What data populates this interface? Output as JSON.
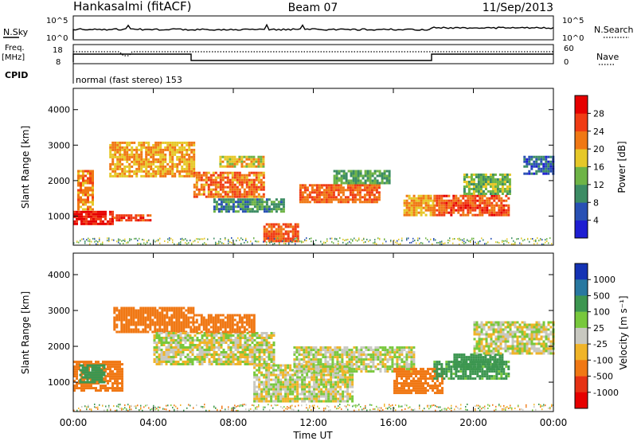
{
  "header": {
    "station": "Hankasalmi (fitACF)",
    "beam": "Beam 07",
    "date": "11/Sep/2013"
  },
  "noise_panel": {
    "left_label": "N.Sky",
    "right_label": "N.Search",
    "tick_top": "10^5",
    "tick_bottom": "10^0"
  },
  "freq_panel": {
    "left_label_line1": "Freq.",
    "left_label_line2": "[MHz]",
    "right_label": "Nave",
    "left_ticks": [
      "18",
      "8"
    ],
    "right_ticks": [
      "60",
      "0"
    ]
  },
  "cpid": {
    "label": "CPID",
    "value": "normal (fast stereo) 153"
  },
  "power_panel": {
    "ylabel": "Slant Range [km]",
    "yticks": [
      "1000",
      "2000",
      "3000",
      "4000"
    ],
    "colorbar_label": "Power [dB]",
    "colorbar_ticks": [
      "4",
      "8",
      "12",
      "16",
      "20",
      "24",
      "28"
    ],
    "colors": [
      "#1e1ed2",
      "#2850b4",
      "#3c8c64",
      "#6eb446",
      "#e6c828",
      "#f07814",
      "#f03c14",
      "#e60000"
    ]
  },
  "velocity_panel": {
    "ylabel": "Slant Range [km]",
    "yticks": [
      "1000",
      "2000",
      "3000",
      "4000"
    ],
    "colorbar_label": "Velocity [m s⁻¹]",
    "colorbar_ticks": [
      "1000",
      "500",
      "100",
      "25",
      "-25",
      "-100",
      "-500",
      "-1000"
    ],
    "colors": [
      "#1432b4",
      "#2878a0",
      "#3c9650",
      "#78c83c",
      "#c8c8c0",
      "#f0b428",
      "#f07814",
      "#e63214",
      "#e60000"
    ]
  },
  "xaxis": {
    "label": "Time UT",
    "ticks": [
      "00:00",
      "04:00",
      "08:00",
      "12:00",
      "16:00",
      "20:00",
      "00:00"
    ]
  },
  "chart_data": {
    "type": "heatmap",
    "x_range_hours": [
      0,
      24
    ],
    "y_range_km": [
      180,
      4600
    ],
    "power_range_db": [
      0,
      32
    ],
    "velocity_range_ms": [
      -1200,
      1200
    ],
    "power_regions": [
      {
        "t0": 0.0,
        "t1": 2.0,
        "r0": 800,
        "r1": 1150,
        "value": 29
      },
      {
        "t0": 2.0,
        "t1": 3.8,
        "r0": 850,
        "r1": 1050,
        "value": 26
      },
      {
        "t0": 0.2,
        "t1": 1.0,
        "r0": 1200,
        "r1": 2300,
        "value": 22
      },
      {
        "t0": 1.8,
        "t1": 6.0,
        "r0": 2100,
        "r1": 3100,
        "value": 20
      },
      {
        "t0": 6.0,
        "t1": 9.5,
        "r0": 1550,
        "r1": 2250,
        "value": 23
      },
      {
        "t0": 7.3,
        "t1": 9.5,
        "r0": 2400,
        "r1": 2700,
        "value": 18
      },
      {
        "t0": 7.0,
        "t1": 10.5,
        "r0": 1150,
        "r1": 1500,
        "value": 10
      },
      {
        "t0": 9.5,
        "t1": 11.2,
        "r0": 300,
        "r1": 800,
        "value": 24
      },
      {
        "t0": 11.3,
        "t1": 15.3,
        "r0": 1400,
        "r1": 1900,
        "value": 24
      },
      {
        "t0": 13.0,
        "t1": 15.8,
        "r0": 1900,
        "r1": 2300,
        "value": 12
      },
      {
        "t0": 16.5,
        "t1": 18.0,
        "r0": 1050,
        "r1": 1600,
        "value": 20
      },
      {
        "t0": 18.0,
        "t1": 21.8,
        "r0": 1000,
        "r1": 1600,
        "value": 25
      },
      {
        "t0": 19.5,
        "t1": 21.8,
        "r0": 1600,
        "r1": 2200,
        "value": 14
      },
      {
        "t0": 22.5,
        "t1": 24.0,
        "r0": 2200,
        "r1": 2700,
        "value": 7
      }
    ],
    "velocity_regions": [
      {
        "t0": 0.0,
        "t1": 2.5,
        "r0": 800,
        "r1": 1600,
        "value": -180
      },
      {
        "t0": 0.3,
        "t1": 1.5,
        "r0": 1000,
        "r1": 1500,
        "value": 300
      },
      {
        "t0": 2.0,
        "t1": 6.0,
        "r0": 2400,
        "r1": 3100,
        "value": -200
      },
      {
        "t0": 4.0,
        "t1": 10.0,
        "r0": 1500,
        "r1": 2400,
        "value": 0
      },
      {
        "t0": 6.0,
        "t1": 9.0,
        "r0": 2400,
        "r1": 2900,
        "value": -300
      },
      {
        "t0": 9.0,
        "t1": 14.0,
        "r0": 500,
        "r1": 1500,
        "value": 5
      },
      {
        "t0": 11.0,
        "t1": 17.0,
        "r0": 1300,
        "r1": 2000,
        "value": 10
      },
      {
        "t0": 16.0,
        "t1": 18.5,
        "r0": 700,
        "r1": 1400,
        "value": -250
      },
      {
        "t0": 18.0,
        "t1": 21.8,
        "r0": 1100,
        "r1": 1600,
        "value": 150
      },
      {
        "t0": 19.0,
        "t1": 21.5,
        "r0": 1400,
        "r1": 1800,
        "value": 350
      },
      {
        "t0": 20.0,
        "t1": 24.0,
        "r0": 1800,
        "r1": 2700,
        "value": 0
      }
    ]
  }
}
